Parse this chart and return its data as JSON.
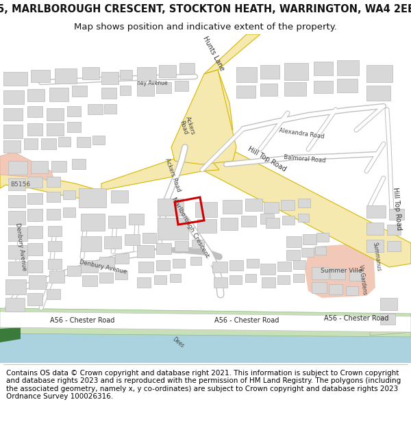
{
  "title_line1": "5, MARLBOROUGH CRESCENT, STOCKTON HEATH, WARRINGTON, WA4 2EE",
  "title_line2": "Map shows position and indicative extent of the property.",
  "footer_text": "Contains OS data © Crown copyright and database right 2021. This information is subject to Crown copyright and database rights 2023 and is reproduced with the permission of HM Land Registry. The polygons (including the associated geometry, namely x, y co-ordinates) are subject to Crown copyright and database rights 2023 Ordnance Survey 100026316.",
  "title_fontsize": 10.5,
  "subtitle_fontsize": 9.5,
  "footer_fontsize": 7.5,
  "fig_width": 6.0,
  "fig_height": 6.25,
  "dpi": 100,
  "bg_white": "#ffffff",
  "map_bg": "#f5f3ef",
  "road_yellow_fill": "#f5e9b0",
  "road_yellow_edge": "#d4b800",
  "building_fill": "#d8d8d8",
  "building_edge": "#b8b8b8",
  "water_color": "#aad3df",
  "green_color": "#c8e0b8",
  "green_edge": "#90b880",
  "plot_red": "#cc0000",
  "pink_area": "#f2c8b8",
  "road_gray_fill": "#ffffff",
  "road_gray_edge": "#c0c0c0",
  "text_dark": "#333333",
  "footer_border": "#aaaaaa",
  "dark_green": "#3a7a3a"
}
